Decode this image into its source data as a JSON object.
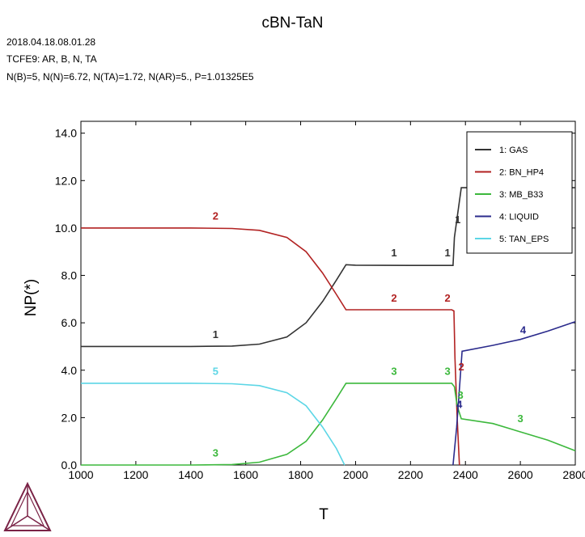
{
  "header": {
    "title": "cBN-TaN",
    "meta_lines": [
      "2018.04.18.08.01.28",
      "TCFE9: AR, B, N, TA",
      "N(B)=5, N(N)=6.72, N(TA)=1.72, N(AR)=5., P=1.01325E5"
    ]
  },
  "chart_data": {
    "type": "line",
    "title": "cBN-TaN",
    "xlabel": "T",
    "ylabel": "NP(*)",
    "xlim": [
      1000,
      2800
    ],
    "ylim": [
      0,
      14.5
    ],
    "xticks": [
      "1000",
      "1200",
      "1400",
      "1600",
      "1800",
      "2000",
      "2200",
      "2400",
      "2600",
      "2800"
    ],
    "yticks": [
      "0.0",
      "2.0",
      "4.0",
      "6.0",
      "8.0",
      "10.0",
      "12.0",
      "14.0"
    ],
    "legend_position": "top-right",
    "series": [
      {
        "name": "1: GAS",
        "label": "1",
        "color": "#333333",
        "points": [
          [
            1000,
            5.0
          ],
          [
            1400,
            5.0
          ],
          [
            1550,
            5.02
          ],
          [
            1650,
            5.1
          ],
          [
            1750,
            5.4
          ],
          [
            1820,
            6.0
          ],
          [
            1880,
            6.9
          ],
          [
            1930,
            7.8
          ],
          [
            1965,
            8.45
          ],
          [
            2000,
            8.43
          ],
          [
            2200,
            8.42
          ],
          [
            2355,
            8.42
          ],
          [
            2360,
            9.6
          ],
          [
            2385,
            11.7
          ],
          [
            2800,
            11.7
          ]
        ],
        "labels": [
          [
            1490,
            5.35
          ],
          [
            2140,
            8.8
          ],
          [
            2335,
            8.8
          ],
          [
            2372,
            10.2
          ]
        ]
      },
      {
        "name": "2: BN_HP4",
        "label": "2",
        "color": "#b22222",
        "points": [
          [
            1000,
            10.0
          ],
          [
            1400,
            10.0
          ],
          [
            1550,
            9.98
          ],
          [
            1650,
            9.9
          ],
          [
            1750,
            9.6
          ],
          [
            1820,
            9.0
          ],
          [
            1880,
            8.1
          ],
          [
            1930,
            7.2
          ],
          [
            1965,
            6.55
          ],
          [
            2000,
            6.55
          ],
          [
            2350,
            6.55
          ],
          [
            2358,
            6.5
          ],
          [
            2362,
            4.5
          ],
          [
            2370,
            2.0
          ],
          [
            2378,
            0.0
          ]
        ],
        "labels": [
          [
            1490,
            10.35
          ],
          [
            2140,
            6.9
          ],
          [
            2335,
            6.9
          ],
          [
            2385,
            4.0
          ]
        ]
      },
      {
        "name": "3: MB_B33",
        "label": "3",
        "color": "#3cb83c",
        "points": [
          [
            1000,
            0.0
          ],
          [
            1400,
            0.0
          ],
          [
            1550,
            0.02
          ],
          [
            1650,
            0.12
          ],
          [
            1750,
            0.45
          ],
          [
            1820,
            1.0
          ],
          [
            1880,
            1.9
          ],
          [
            1930,
            2.8
          ],
          [
            1965,
            3.45
          ],
          [
            2000,
            3.45
          ],
          [
            2350,
            3.45
          ],
          [
            2360,
            3.3
          ],
          [
            2370,
            2.5
          ],
          [
            2385,
            1.95
          ],
          [
            2500,
            1.75
          ],
          [
            2600,
            1.4
          ],
          [
            2700,
            1.05
          ],
          [
            2800,
            0.6
          ]
        ],
        "labels": [
          [
            1490,
            0.35
          ],
          [
            2140,
            3.8
          ],
          [
            2335,
            3.8
          ],
          [
            2382,
            2.8
          ],
          [
            2600,
            1.8
          ]
        ]
      },
      {
        "name": "4: LIQUID",
        "label": "4",
        "color": "#2b2b8c",
        "points": [
          [
            2355,
            0.0
          ],
          [
            2368,
            1.6
          ],
          [
            2380,
            3.5
          ],
          [
            2388,
            4.8
          ],
          [
            2500,
            5.05
          ],
          [
            2600,
            5.3
          ],
          [
            2700,
            5.65
          ],
          [
            2800,
            6.05
          ]
        ],
        "labels": [
          [
            2378,
            2.4
          ],
          [
            2610,
            5.55
          ]
        ]
      },
      {
        "name": "5: TAN_EPS",
        "label": "5",
        "color": "#5cd6e6",
        "points": [
          [
            1000,
            3.45
          ],
          [
            1400,
            3.45
          ],
          [
            1550,
            3.43
          ],
          [
            1650,
            3.35
          ],
          [
            1750,
            3.05
          ],
          [
            1820,
            2.5
          ],
          [
            1880,
            1.6
          ],
          [
            1930,
            0.7
          ],
          [
            1960,
            0.0
          ]
        ],
        "labels": [
          [
            1490,
            3.8
          ]
        ]
      }
    ]
  }
}
